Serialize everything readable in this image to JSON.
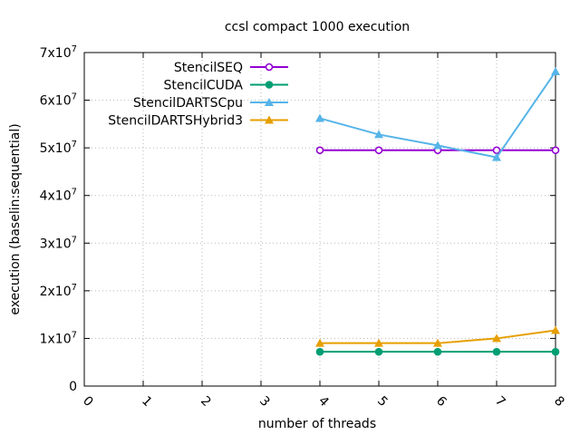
{
  "chart_data": {
    "type": "line",
    "title": "ccsl compact 1000 execution",
    "xlabel": "number of threads",
    "ylabel": "execution (baselin:sequential)",
    "xlim": [
      0,
      8
    ],
    "ylim": [
      0,
      70000000
    ],
    "x_ticks": [
      "0",
      "1",
      "2",
      "3",
      "4",
      "5",
      "6",
      "7",
      "8"
    ],
    "y_ticks": [
      {
        "value": 0,
        "mant": "0",
        "exp": ""
      },
      {
        "value": 10000000,
        "mant": "1x10",
        "exp": "7"
      },
      {
        "value": 20000000,
        "mant": "2x10",
        "exp": "7"
      },
      {
        "value": 30000000,
        "mant": "3x10",
        "exp": "7"
      },
      {
        "value": 40000000,
        "mant": "4x10",
        "exp": "7"
      },
      {
        "value": 50000000,
        "mant": "5x10",
        "exp": "7"
      },
      {
        "value": 60000000,
        "mant": "6x10",
        "exp": "7"
      },
      {
        "value": 70000000,
        "mant": "7x10",
        "exp": "7"
      }
    ],
    "grid": true,
    "legend_position": "top-left",
    "x": [
      4,
      5,
      6,
      7,
      8
    ],
    "series": [
      {
        "name": "StencilSEQ",
        "color": "#9400d3",
        "marker": "circle-open",
        "values": [
          49500000,
          49500000,
          49500000,
          49500000,
          49500000
        ]
      },
      {
        "name": "StencilCUDA",
        "color": "#009e73",
        "marker": "circle-filled",
        "values": [
          7200000,
          7200000,
          7200000,
          7200000,
          7200000
        ]
      },
      {
        "name": "StencilDARTSCpu",
        "color": "#56b4e9",
        "marker": "triangle",
        "values": [
          56200000,
          52800000,
          50500000,
          48000000,
          66000000
        ]
      },
      {
        "name": "StencilDARTSHybrid3",
        "color": "#e69f00",
        "marker": "triangle",
        "values": [
          9000000,
          9000000,
          9000000,
          10000000,
          11700000
        ]
      }
    ]
  }
}
